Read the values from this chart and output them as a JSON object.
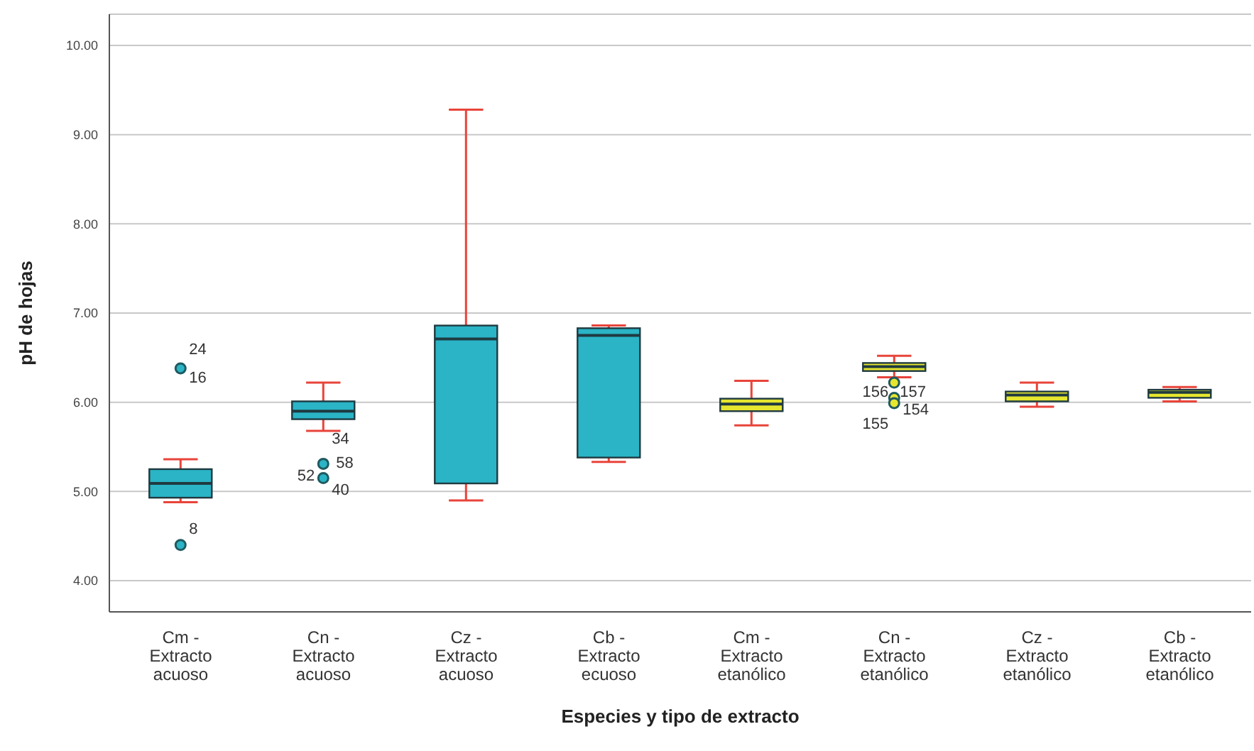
{
  "chart_data": {
    "type": "box",
    "xlabel": "Especies y tipo de extracto",
    "ylabel": "pH de hojas",
    "categories": [
      "Cm -\nExtracto\nacuoso",
      "Cn -\nExtracto\nacuoso",
      "Cz -\nExtracto\nacuoso",
      "Cb -\nExtracto\necuoso",
      "Cm -\nExtracto\netanólico",
      "Cn -\nExtracto\netanólico",
      "Cz -\nExtracto\netanólico",
      "Cb -\nExtracto\netanólico"
    ],
    "colors": [
      "#2ab4c6",
      "#2ab4c6",
      "#2ab4c6",
      "#2ab4c6",
      "#e6e62e",
      "#e6e62e",
      "#e6e62e",
      "#e6e62e"
    ],
    "boxes": [
      {
        "low": 4.88,
        "q1": 4.93,
        "median": 5.09,
        "q3": 5.25,
        "high": 5.36,
        "outliers": [
          6.38,
          4.4
        ]
      },
      {
        "low": 5.68,
        "q1": 5.81,
        "median": 5.9,
        "q3": 6.01,
        "high": 6.22,
        "outliers": [
          5.31,
          5.15
        ]
      },
      {
        "low": 4.9,
        "q1": 5.09,
        "median": 6.71,
        "q3": 6.86,
        "high": 9.28
      },
      {
        "low": 5.33,
        "q1": 5.38,
        "median": 6.75,
        "q3": 6.83,
        "high": 6.86
      },
      {
        "low": 5.74,
        "q1": 5.9,
        "median": 5.98,
        "q3": 6.04,
        "high": 6.24
      },
      {
        "low": 6.28,
        "q1": 6.35,
        "median": 6.4,
        "q3": 6.44,
        "high": 6.52,
        "outliers": [
          6.22,
          6.05,
          5.99
        ]
      },
      {
        "low": 5.95,
        "q1": 6.01,
        "median": 6.08,
        "q3": 6.12,
        "high": 6.22
      },
      {
        "low": 6.01,
        "q1": 6.05,
        "median": 6.11,
        "q3": 6.14,
        "high": 6.17
      }
    ],
    "ylim": [
      3.65,
      10.35
    ],
    "yticks": [
      {
        "value": 4,
        "label": "4.00"
      },
      {
        "value": 5,
        "label": "5.00"
      },
      {
        "value": 6,
        "label": "6.00"
      },
      {
        "value": 7,
        "label": "7.00"
      },
      {
        "value": 8,
        "label": "8.00"
      },
      {
        "value": 9,
        "label": "9.00"
      },
      {
        "value": 10,
        "label": "10.00"
      }
    ],
    "grid": "y",
    "annotations": [
      "24",
      "16",
      "8",
      "34",
      "58",
      "52",
      "40",
      "156",
      "157",
      "155",
      "154"
    ]
  }
}
